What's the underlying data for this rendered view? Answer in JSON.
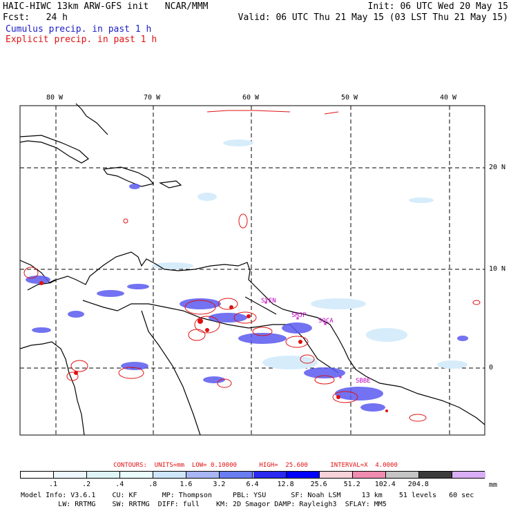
{
  "header": {
    "model_line": "HAIC-HIWC 13km ARW-GFS init   NCAR/MMM",
    "fcst_line": "Fcst:   24 h",
    "init_line": "Init: 06 UTC Wed 20 May 15",
    "valid_line": "Valid: 06 UTC Thu 21 May 15 (03 LST Thu 21 May 15)",
    "cumulus_line": "Cumulus precip. in past 1 h",
    "explicit_line": "Explicit precip. in past 1 h"
  },
  "map": {
    "lon_labels": [
      "80 W",
      "70 W",
      "60 W",
      "50 W",
      "40 W"
    ],
    "lat_labels": [
      "20 N",
      "10 N",
      "0"
    ],
    "station_labels": [
      "SYEN",
      "SMJP",
      "SOCA",
      "SBBE"
    ],
    "colors": {
      "cumulus": "#5a5af0",
      "explicit": "#e01010",
      "station": "#c000c0",
      "coast": "#000000"
    }
  },
  "contours_line": "CONTOURS:  UNITS=mm  LOW= 0.10000      HIGH=  25.600      INTERVAL=X  4.0000",
  "colorbar": {
    "unit": "mm",
    "ticks": [
      ".1",
      ".2",
      ".4",
      ".8",
      "1.6",
      "3.2",
      "6.4",
      "12.8",
      "25.6",
      "51.2",
      "102.4",
      "204.8"
    ],
    "colors": [
      "#ffffff",
      "#eef6ff",
      "#dff5f5",
      "#eafdfa",
      "#cfe6fb",
      "#a9b6f5",
      "#6a7df0",
      "#2a2af0",
      "#0000ff",
      "#f7d2d8",
      "#f08cb0",
      "#c4c4c4",
      "#3c3c3c",
      "#d9aef5"
    ]
  },
  "footer": {
    "line1": "Model Info: V3.6.1    CU: KF      MP: Thompson     PBL: YSU      SF: Noah LSM     13 km    51 levels   60 sec",
    "line2": "         LW: RRTMG    SW: RRTMG  DIFF: full    KM: 2D Smagor DAMP: Rayleigh3  SFLAY: MM5"
  }
}
